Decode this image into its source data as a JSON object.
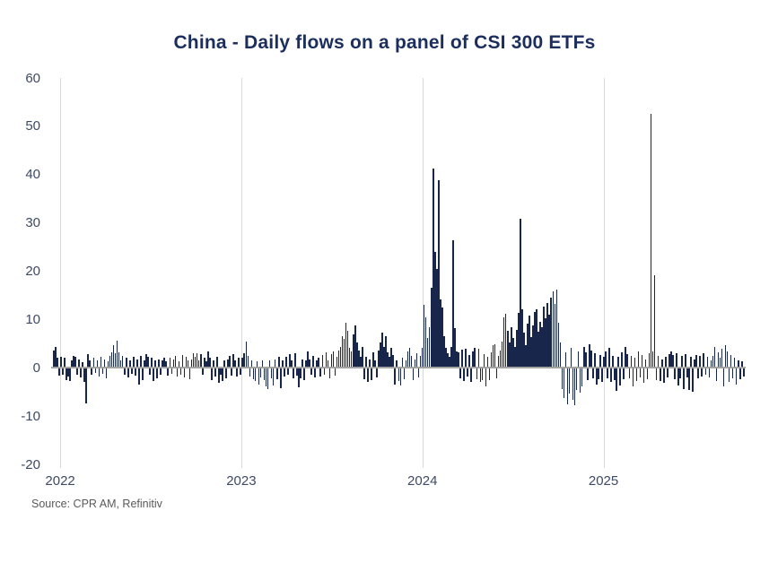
{
  "title": "China - Daily flows on a panel of CSI 300 ETFs",
  "footer": {
    "source": "Source: CPR AM, Refinitiv"
  },
  "colors": {
    "title": "#1b2e5e",
    "bar": "#18264c",
    "zero_line": "#a3a3a3",
    "gridline": "#d9d9d9",
    "axis_label": "#3d4a63",
    "source": "#595959"
  },
  "chart_data": {
    "type": "bar",
    "title": "China - Daily flows on a panel of CSI 300 ETFs",
    "xlabel": "",
    "ylabel": "",
    "legend": null,
    "grid": "vertical-year-lines-only",
    "x_axis": {
      "tick_labels": [
        "2022",
        "2023",
        "2024",
        "2025"
      ],
      "tick_years": [
        2022,
        2023,
        2024,
        2025
      ],
      "start_year": 2021.95,
      "end_year": 2025.785
    },
    "y_axis": {
      "min": -20,
      "max": 60,
      "tick_step": 10,
      "ticks": [
        60,
        50,
        40,
        30,
        20,
        10,
        0,
        -10,
        -20
      ]
    },
    "notable_points": [
      {
        "approx_date": "2022-02",
        "value": -7.3
      },
      {
        "approx_date": "2024-01",
        "value": 41.3
      },
      {
        "approx_date": "2024-02",
        "value": 38.8
      },
      {
        "approx_date": "2024-03",
        "value": 26.4
      },
      {
        "approx_date": "2024-09",
        "value": 30.8
      },
      {
        "approx_date": "2024-10",
        "value": 16.2
      },
      {
        "approx_date": "2025-04",
        "value": 52.6
      },
      {
        "approx_date": "2025-04b",
        "value": 19.2
      }
    ],
    "values": [
      3.6,
      4.4,
      2,
      -1.6,
      2.2,
      -1.5,
      2,
      -2.5,
      -1.8,
      -2.8,
      1.5,
      2.4,
      2.2,
      -1.5,
      1.8,
      -2,
      1.2,
      -3,
      -7.3,
      2.8,
      1.5,
      -1.5,
      2,
      -1,
      1.5,
      -1.8,
      2.3,
      -1.2,
      1.8,
      -2.2,
      1.4,
      2.5,
      3.2,
      4.6,
      3,
      5.6,
      3.2,
      1.5,
      2.4,
      -1.5,
      2,
      -2,
      1.5,
      -1.2,
      2.2,
      -1.6,
      1.8,
      -3.4,
      2.5,
      -2.6,
      1.6,
      2.8,
      2.3,
      -1.5,
      2,
      -2.8,
      1.5,
      -2.2,
      1.8,
      -1.4,
      1.6,
      2,
      1.4,
      -1.6,
      2.1,
      -1.2,
      1.8,
      2.4,
      -1.8,
      1.3,
      -1.5,
      2.6,
      -2,
      2.2,
      1.5,
      -2.4,
      1.8,
      3,
      2.2,
      3.1,
      1.6,
      2.8,
      -1.5,
      2,
      1.4,
      3.3,
      2,
      -2.5,
      1.6,
      -1.8,
      2.2,
      -3.2,
      -1.5,
      -2.8,
      1.5,
      -2.2,
      1.8,
      2.4,
      -1.6,
      2.8,
      1.5,
      -1.8,
      2.1,
      -1.4,
      2,
      3,
      5.4,
      2.5,
      -1.8,
      1.5,
      -2.3,
      -2.8,
      1.4,
      -3.4,
      -2,
      1.6,
      -2.6,
      -3.8,
      -4.4,
      1.5,
      -2.2,
      -3.6,
      1.8,
      -2.4,
      2.2,
      -4.2,
      1.5,
      -1.8,
      2.3,
      -1.5,
      2.8,
      1.6,
      -2.2,
      3,
      -1.6,
      -4,
      -2.2,
      1.8,
      -2.6,
      1.5,
      3.4,
      1.8,
      -1.5,
      2.4,
      -2,
      1.6,
      2,
      -1.8,
      2.6,
      -1.4,
      3.2,
      1.5,
      -2.2,
      2.8,
      3.4,
      -1.6,
      2.2,
      3.6,
      4.4,
      6.6,
      6,
      9.4,
      7.6,
      4.2,
      3.4,
      7,
      8.8,
      5.2,
      3.6,
      2.2,
      4.4,
      -2.4,
      2.2,
      -3,
      1.8,
      -2.6,
      3.2,
      1.5,
      -2,
      3.5,
      5.2,
      7.2,
      4.4,
      6.6,
      3.2,
      2.2,
      4.2,
      2.6,
      -3.4,
      1.6,
      -2.8,
      -3.6,
      2,
      -2.4,
      1.5,
      3.4,
      4.2,
      2.4,
      -2.6,
      1.8,
      3,
      -2,
      2.4,
      4.2,
      13,
      10.4,
      6.2,
      8.4,
      16.5,
      41.3,
      24,
      20.5,
      38.8,
      14.2,
      12.4,
      6.5,
      4.2,
      3,
      2.2,
      4.4,
      26.4,
      8.2,
      3.4,
      3.2,
      -2.2,
      3.8,
      -2.8,
      4,
      -1.8,
      2.6,
      -3,
      3.4,
      4.2,
      -2.4,
      4,
      -3,
      -2.6,
      2.8,
      -3.8,
      2.2,
      -2.6,
      3.2,
      4.6,
      4.8,
      -2.2,
      2.4,
      3.6,
      5.4,
      10.4,
      11.2,
      7.6,
      5.2,
      8.4,
      6.2,
      4.4,
      7.8,
      11.4,
      30.8,
      12.2,
      7.2,
      4.6,
      9.2,
      10.8,
      6.4,
      8.8,
      11.6,
      12.2,
      7.4,
      9.6,
      8.4,
      12.6,
      10.2,
      13.4,
      11,
      14.6,
      15.8,
      13.2,
      16.2,
      9.4,
      5.2,
      -4.4,
      -6.2,
      3.2,
      -7.6,
      -5.4,
      4.2,
      -6.6,
      -7.8,
      -4.6,
      3.4,
      -5.2,
      -3.8,
      4.4,
      3.2,
      -2.6,
      4.8,
      3.6,
      -2.2,
      3,
      -3.4,
      -2.4,
      2.6,
      -3,
      2.2,
      3.4,
      -2.2,
      4.2,
      -3,
      2.4,
      -2.6,
      -4.8,
      2.2,
      -3.6,
      3.2,
      -2.4,
      4.4,
      2.8,
      -2.2,
      2.4,
      -3.8,
      2,
      -2.8,
      3.4,
      -2,
      2.6,
      -3.2,
      1.8,
      -2.4,
      3,
      52.6,
      3.4,
      19.2,
      -2.6,
      2.4,
      -2.8,
      1.8,
      -3.2,
      2.2,
      -2,
      2.8,
      3.4,
      2.6,
      -2.4,
      3,
      -3.6,
      -2.2,
      2.4,
      -4.4,
      2.8,
      -2,
      -4.6,
      2.2,
      -5,
      1.8,
      2.6,
      -2.2,
      2.4,
      -1.8,
      3,
      -1.4,
      2.2,
      -2,
      1.6,
      2.4,
      4.4,
      -2.8,
      3.2,
      2,
      4,
      -3.8,
      4.6,
      3.4,
      -3,
      2.6,
      -2.2,
      2,
      -3.4,
      1.6,
      -2.4,
      1.4,
      -1.8
    ]
  }
}
